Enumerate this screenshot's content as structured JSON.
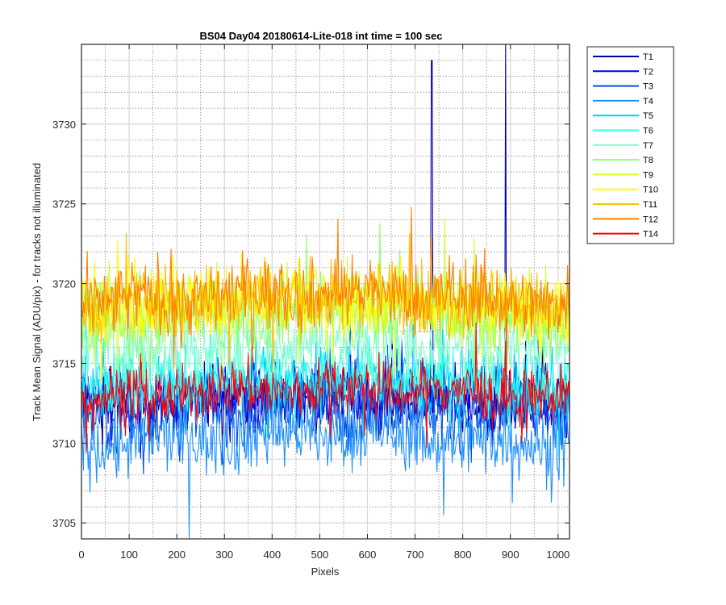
{
  "chart_data": {
    "type": "line",
    "title": "BS04 Day04 20180614-Lite-018 int time = 100 sec",
    "xlabel": "Pixels",
    "ylabel": "Track Mean Signal (ADU/pix) - for tracks not illuminated",
    "xlim": [
      0,
      1024
    ],
    "ylim": [
      3704,
      3735
    ],
    "xticks": [
      0,
      100,
      200,
      300,
      400,
      500,
      600,
      700,
      800,
      900,
      1000
    ],
    "yticks": [
      3705,
      3710,
      3715,
      3720,
      3725,
      3730
    ],
    "grid": "major solid, minor dotted",
    "legend_position": "outside-top-right",
    "series": [
      {
        "name": "T1",
        "color": "#0000AA",
        "mean": 3712.5,
        "spread": 1.4,
        "spikes": [
          [
            735,
            3734
          ],
          [
            890,
            3735
          ]
        ]
      },
      {
        "name": "T2",
        "color": "#0000E6",
        "mean": 3712.3,
        "spread": 1.4,
        "spikes": []
      },
      {
        "name": "T3",
        "color": "#0050E0",
        "mean": 3711.5,
        "spread": 1.4,
        "spikes": []
      },
      {
        "name": "T4",
        "color": "#1E90FF",
        "mean": 3709.8,
        "spread": 1.5,
        "spikes": []
      },
      {
        "name": "T5",
        "color": "#00CFFF",
        "mean": 3713.3,
        "spread": 1.4,
        "spikes": []
      },
      {
        "name": "T6",
        "color": "#2FFFEF",
        "mean": 3713.6,
        "spread": 1.4,
        "spikes": []
      },
      {
        "name": "T7",
        "color": "#7FFFCF",
        "mean": 3715.6,
        "spread": 1.5,
        "spikes": []
      },
      {
        "name": "T8",
        "color": "#8FFF6F",
        "mean": 3717.6,
        "spread": 1.5,
        "spikes": []
      },
      {
        "name": "T9",
        "color": "#CFFF2F",
        "mean": 3718.1,
        "spread": 1.5,
        "spikes": []
      },
      {
        "name": "T10",
        "color": "#FFFF00",
        "mean": 3718.4,
        "spread": 1.5,
        "spikes": []
      },
      {
        "name": "T11",
        "color": "#FFBF00",
        "mean": 3718.6,
        "spread": 1.5,
        "spikes": []
      },
      {
        "name": "T12",
        "color": "#FF8000",
        "mean": 3718.7,
        "spread": 1.5,
        "spikes": []
      },
      {
        "name": "T14",
        "color": "#FF0000",
        "mean": 3712.7,
        "spread": 1.2,
        "spikes": []
      }
    ]
  }
}
